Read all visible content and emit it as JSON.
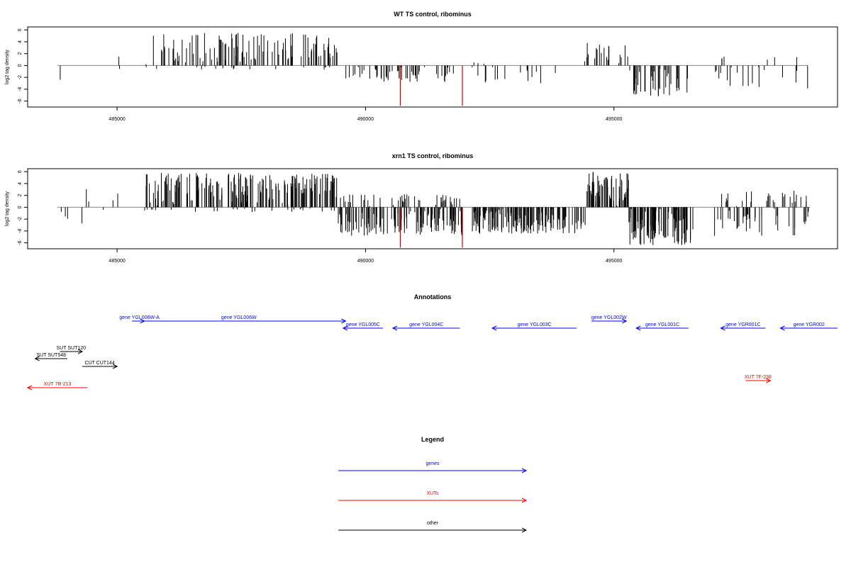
{
  "chart_data": [
    {
      "type": "bar",
      "title": "WT TS control, ribominus",
      "xlabel": "",
      "ylabel": "log2 tag density",
      "xlim": [
        483200,
        499500
      ],
      "ylim": [
        -7,
        6.5
      ],
      "yticks": [
        -6,
        -4,
        -2,
        0,
        2,
        4,
        6
      ],
      "yticks_labels": [
        "-6",
        "-4",
        "-2",
        "0",
        "2",
        "4",
        "6"
      ],
      "xticks": [
        485000,
        490000,
        495000
      ],
      "xticks_labels": [
        "485000",
        "490000",
        "495000"
      ],
      "baseline": 0,
      "series_color": "#000000",
      "highlight_color": "#cc0000",
      "segments": [
        {
          "start": 483800,
          "end": 485300,
          "min": -2.5,
          "max": 1.8,
          "density": 0.01
        },
        {
          "start": 485550,
          "end": 489450,
          "min": -0.7,
          "max": 5.5,
          "density": 0.16
        },
        {
          "start": 489550,
          "end": 491900,
          "min": -2.8,
          "max": 0,
          "density": 0.1
        },
        {
          "start": 491900,
          "end": 494300,
          "min": -3.0,
          "max": 0.6,
          "density": 0.04
        },
        {
          "start": 494400,
          "end": 495300,
          "min": 0,
          "max": 4.0,
          "density": 0.1
        },
        {
          "start": 495300,
          "end": 496500,
          "min": -5.2,
          "max": 0,
          "density": 0.16
        },
        {
          "start": 497000,
          "end": 498900,
          "min": -4.0,
          "max": 1.5,
          "density": 0.06
        }
      ],
      "highlights": [
        {
          "x": 490700,
          "value": -6.8
        },
        {
          "x": 491950,
          "value": -6.8
        }
      ]
    },
    {
      "type": "bar",
      "title": "xrn1 TS control, ribominus",
      "xlabel": "",
      "ylabel": "log2 tag density",
      "xlim": [
        483200,
        499500
      ],
      "ylim": [
        -7,
        6.5
      ],
      "yticks": [
        -6,
        -4,
        -2,
        0,
        2,
        4,
        6
      ],
      "yticks_labels": [
        "-6",
        "-4",
        "-2",
        "0",
        "2",
        "4",
        "6"
      ],
      "xticks": [
        485000,
        490000,
        495000
      ],
      "xticks_labels": [
        "485000",
        "490000",
        "495000"
      ],
      "baseline": 0,
      "series_color": "#000000",
      "highlight_color": "#cc0000",
      "segments": [
        {
          "start": 483800,
          "end": 485300,
          "min": -2.8,
          "max": 3.2,
          "density": 0.03
        },
        {
          "start": 485550,
          "end": 489450,
          "min": -0.8,
          "max": 5.8,
          "density": 0.28
        },
        {
          "start": 489450,
          "end": 491950,
          "min": -4.8,
          "max": 2.2,
          "density": 0.32
        },
        {
          "start": 492150,
          "end": 494450,
          "min": -4.5,
          "max": 0,
          "density": 0.32
        },
        {
          "start": 494450,
          "end": 495300,
          "min": 0,
          "max": 6.0,
          "density": 0.38
        },
        {
          "start": 495300,
          "end": 496600,
          "min": -6.5,
          "max": 0,
          "density": 0.38
        },
        {
          "start": 497000,
          "end": 498950,
          "min": -5.0,
          "max": 2.8,
          "density": 0.16
        }
      ],
      "highlights": [
        {
          "x": 490700,
          "value": -6.8
        },
        {
          "x": 491950,
          "value": -6.8
        }
      ]
    }
  ],
  "annotations": {
    "title": "Annotations",
    "genes_color": "#0000ff",
    "xuts_color": "#ff0000",
    "other_color": "#000000",
    "items": [
      {
        "label": "gene YGL006W-A",
        "start": 485350,
        "end": 485550,
        "strand": "+",
        "track": 0,
        "kind": "gene"
      },
      {
        "label": "gene YGL006W",
        "start": 485300,
        "end": 489600,
        "strand": "+",
        "track": 0,
        "kind": "gene"
      },
      {
        "label": "gene YGL005C",
        "start": 489550,
        "end": 490350,
        "strand": "-",
        "track": 1,
        "kind": "gene"
      },
      {
        "label": "gene YGL004C",
        "start": 490550,
        "end": 491900,
        "strand": "-",
        "track": 1,
        "kind": "gene"
      },
      {
        "label": "gene YGL003C",
        "start": 492550,
        "end": 494250,
        "strand": "-",
        "track": 1,
        "kind": "gene"
      },
      {
        "label": "gene YGL002W",
        "start": 494550,
        "end": 495250,
        "strand": "+",
        "track": 0,
        "kind": "gene"
      },
      {
        "label": "gene YGL001C",
        "start": 495450,
        "end": 496500,
        "strand": "-",
        "track": 1,
        "kind": "gene"
      },
      {
        "label": "gene YGR001C",
        "start": 497150,
        "end": 498050,
        "strand": "-",
        "track": 1,
        "kind": "gene"
      },
      {
        "label": "gene YGR002",
        "start": 498350,
        "end": 499500,
        "strand": "-",
        "track": 1,
        "kind": "gene"
      },
      {
        "label": "SUT SUT120",
        "start": 483850,
        "end": 484300,
        "strand": "+",
        "track": 3,
        "kind": "other"
      },
      {
        "label": "SUT SUT548",
        "start": 483350,
        "end": 484000,
        "strand": "-",
        "track": 4,
        "kind": "other"
      },
      {
        "label": "CUT CUT144",
        "start": 484300,
        "end": 485000,
        "strand": "+",
        "track": 5,
        "kind": "other"
      },
      {
        "label": "XUT 7R-213",
        "start": 483200,
        "end": 484400,
        "strand": "-",
        "track": 6,
        "kind": "xut"
      },
      {
        "label": "XUT 7F-238",
        "start": 497650,
        "end": 498150,
        "strand": "+",
        "track": 7,
        "kind": "xut"
      }
    ]
  },
  "legend": {
    "title": "Legend",
    "items": [
      {
        "label": "genes",
        "color": "#0000ff"
      },
      {
        "label": "XUTs",
        "color": "#ff0000"
      },
      {
        "label": "other",
        "color": "#000000"
      }
    ]
  }
}
